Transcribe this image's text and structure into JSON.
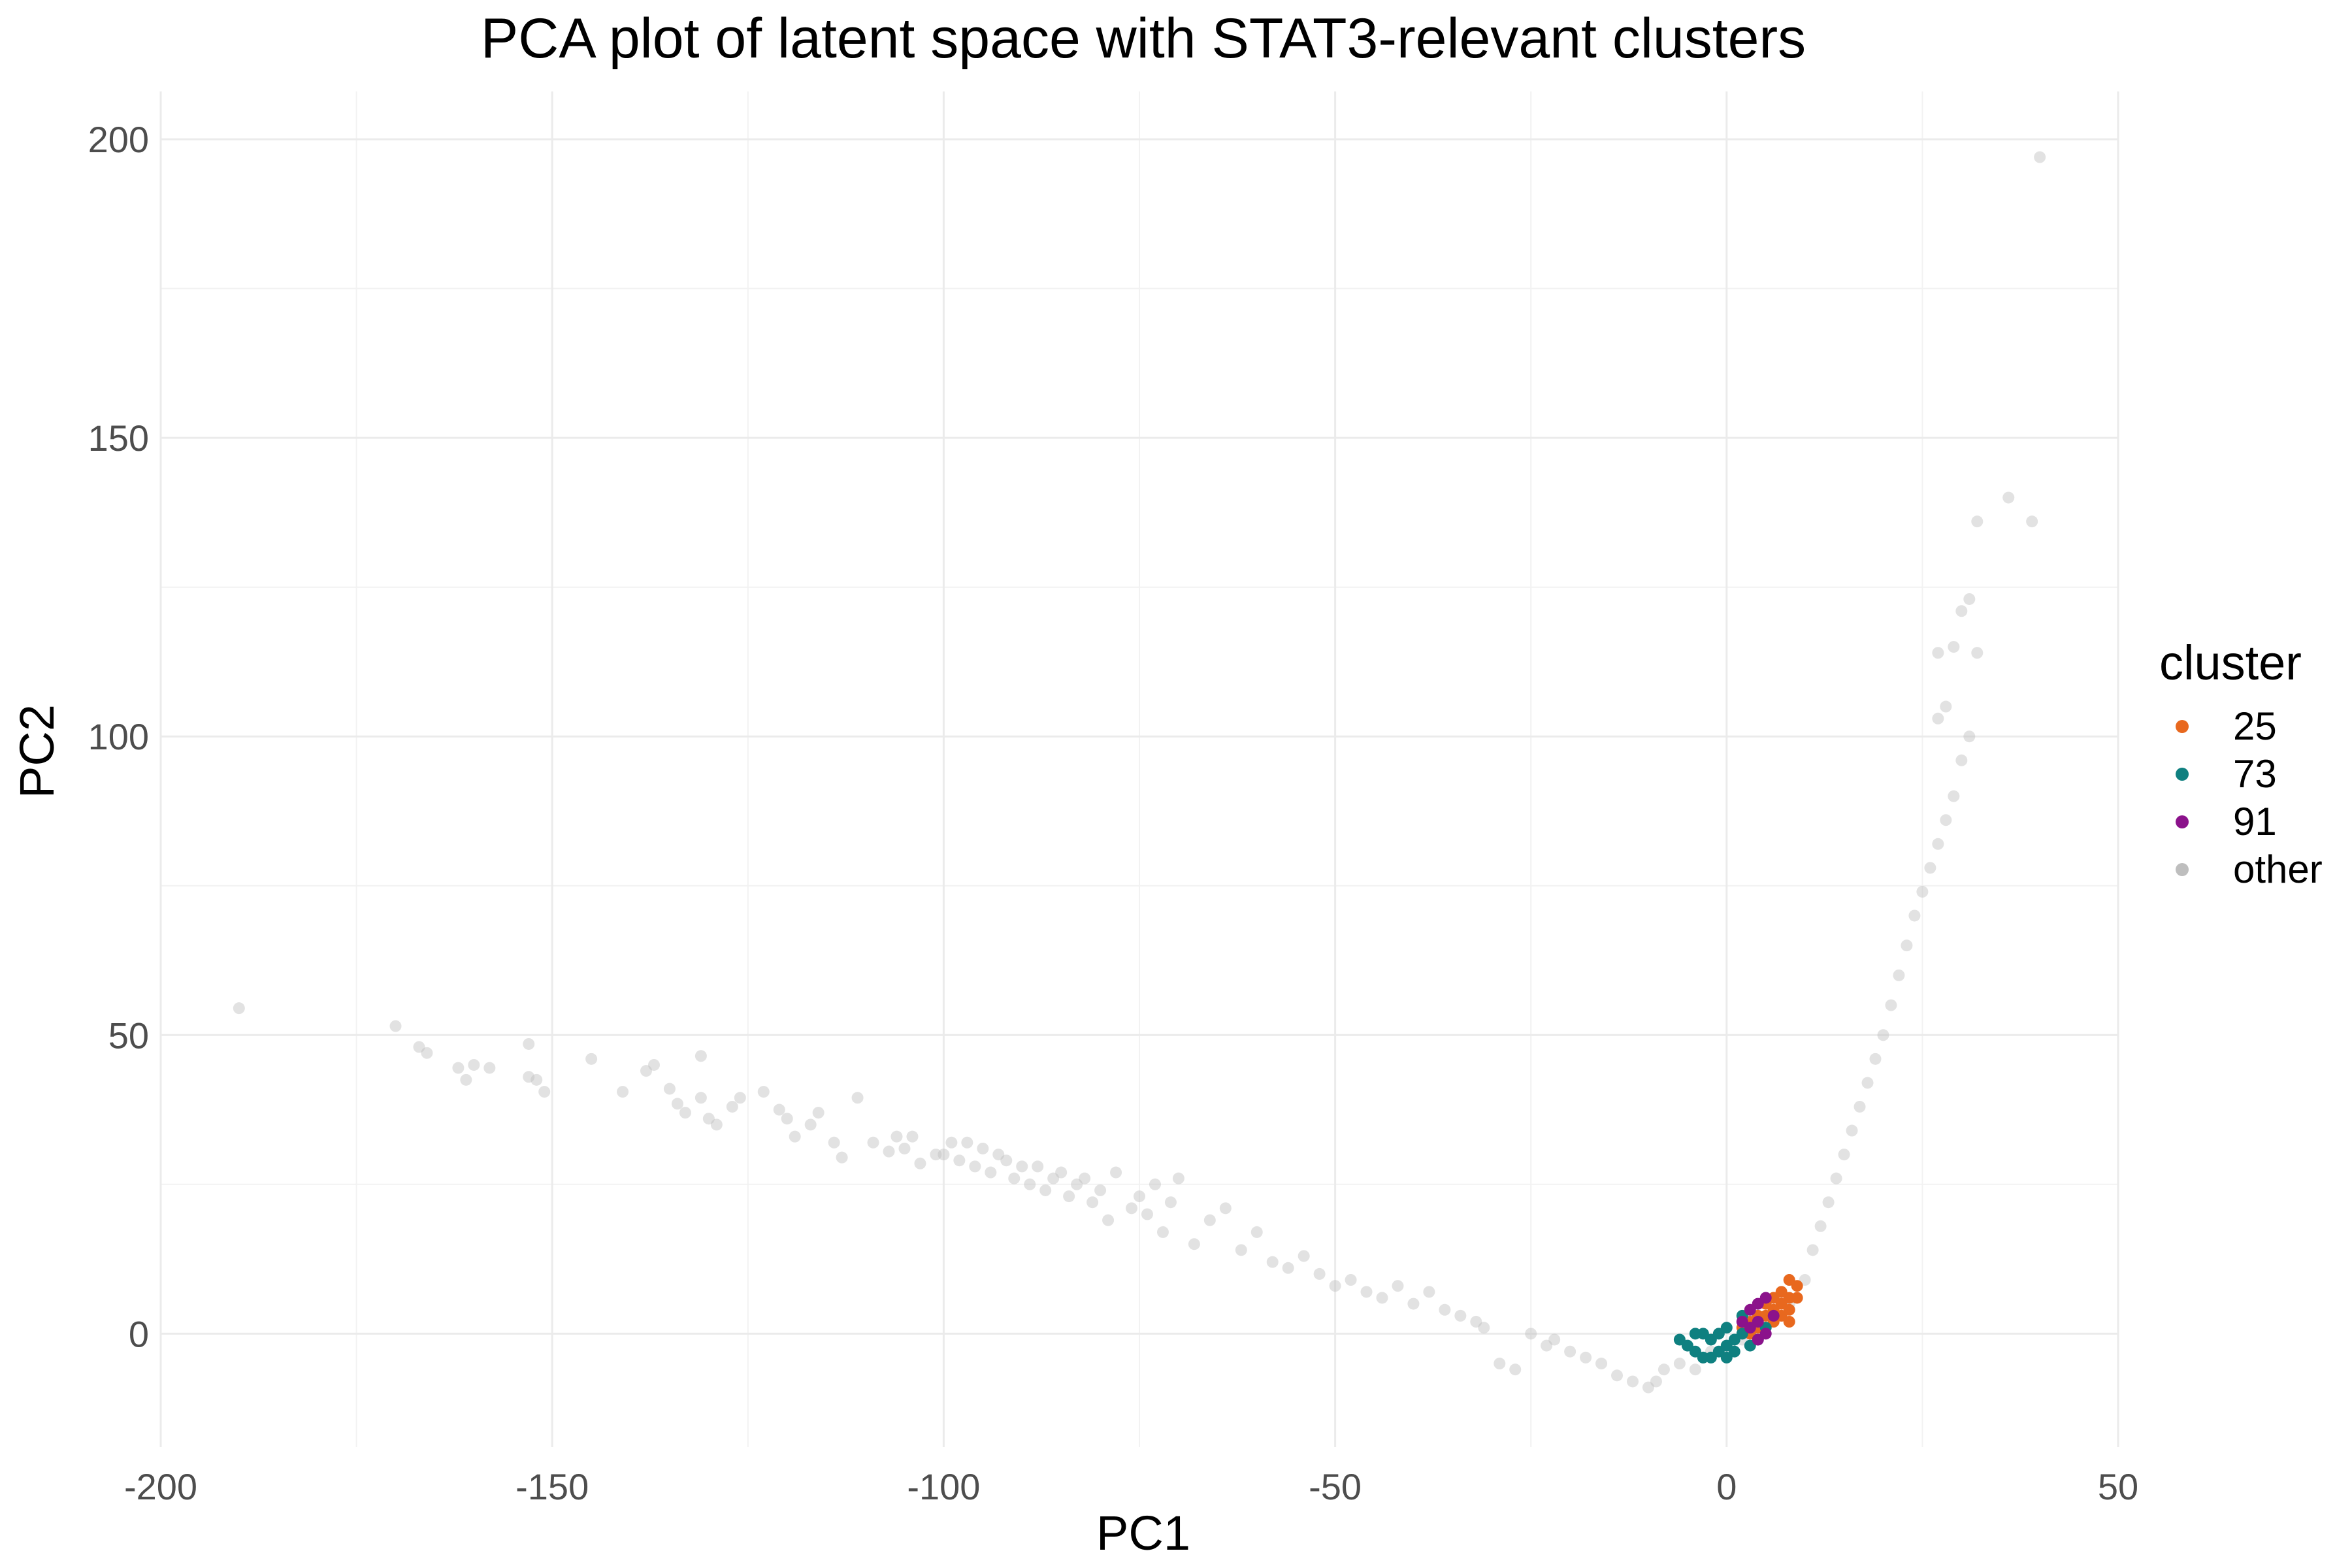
{
  "chart_data": {
    "type": "scatter",
    "title": "PCA plot of latent space with STAT3-relevant clusters",
    "xlabel": "PC1",
    "ylabel": "PC2",
    "xlim": [
      -200,
      50
    ],
    "ylim": [
      -19,
      208
    ],
    "xticks": [
      -200,
      -150,
      -100,
      -50,
      0,
      50
    ],
    "yticks": [
      0,
      50,
      100,
      150,
      200
    ],
    "x_tick_labels": [
      "-200",
      "-150",
      "-100",
      "-50",
      "0",
      "50"
    ],
    "y_tick_labels": [
      "0",
      "50",
      "100",
      "150",
      "200"
    ],
    "grid": true,
    "legend": {
      "title": "cluster",
      "position": "right",
      "entries": [
        {
          "label": "25",
          "color": "#e8681e"
        },
        {
          "label": "73",
          "color": "#0f8080"
        },
        {
          "label": "91",
          "color": "#8b128b"
        },
        {
          "label": "other",
          "color": "#bebebe"
        }
      ]
    },
    "series": [
      {
        "name": "other",
        "color": "#bebebe",
        "opacity": 0.45,
        "points": [
          [
            -190,
            54.5
          ],
          [
            -170,
            51.5
          ],
          [
            -167,
            48
          ],
          [
            -166,
            47
          ],
          [
            -162,
            44.5
          ],
          [
            -161,
            42.5
          ],
          [
            -160,
            45
          ],
          [
            -158,
            44.5
          ],
          [
            -153,
            43
          ],
          [
            -153,
            48.5
          ],
          [
            -152,
            42.5
          ],
          [
            -151,
            40.5
          ],
          [
            -145,
            46
          ],
          [
            -141,
            40.5
          ],
          [
            -138,
            44
          ],
          [
            -137,
            45
          ],
          [
            -135,
            41
          ],
          [
            -134,
            38.5
          ],
          [
            -133,
            37
          ],
          [
            -131,
            46.5
          ],
          [
            -131,
            39.5
          ],
          [
            -130,
            36
          ],
          [
            -129,
            35
          ],
          [
            -127,
            38
          ],
          [
            -126,
            39.5
          ],
          [
            -123,
            40.5
          ],
          [
            -121,
            37.5
          ],
          [
            -120,
            36
          ],
          [
            -119,
            33
          ],
          [
            -117,
            35
          ],
          [
            -116,
            37
          ],
          [
            -114,
            32
          ],
          [
            -113,
            29.5
          ],
          [
            -111,
            39.5
          ],
          [
            -109,
            32
          ],
          [
            -107,
            30.5
          ],
          [
            -106,
            33
          ],
          [
            -105,
            31
          ],
          [
            -104,
            33
          ],
          [
            -103,
            28.5
          ],
          [
            -101,
            30
          ],
          [
            -100,
            30
          ],
          [
            -99,
            32
          ],
          [
            -98,
            29
          ],
          [
            -97,
            32
          ],
          [
            -96,
            28
          ],
          [
            -95,
            31
          ],
          [
            -94,
            27
          ],
          [
            -93,
            30
          ],
          [
            -92,
            29
          ],
          [
            -91,
            26
          ],
          [
            -90,
            28
          ],
          [
            -89,
            25
          ],
          [
            -88,
            28
          ],
          [
            -87,
            24
          ],
          [
            -86,
            26
          ],
          [
            -85,
            27
          ],
          [
            -84,
            23
          ],
          [
            -83,
            25
          ],
          [
            -82,
            26
          ],
          [
            -81,
            22
          ],
          [
            -80,
            24
          ],
          [
            -79,
            19
          ],
          [
            -78,
            27
          ],
          [
            -76,
            21
          ],
          [
            -75,
            23
          ],
          [
            -74,
            20
          ],
          [
            -73,
            25
          ],
          [
            -72,
            17
          ],
          [
            -71,
            22
          ],
          [
            -70,
            26
          ],
          [
            -68,
            15
          ],
          [
            -66,
            19
          ],
          [
            -64,
            21
          ],
          [
            -62,
            14
          ],
          [
            -60,
            17
          ],
          [
            -58,
            12
          ],
          [
            -56,
            11
          ],
          [
            -54,
            13
          ],
          [
            -52,
            10
          ],
          [
            -50,
            8
          ],
          [
            -48,
            9
          ],
          [
            -46,
            7
          ],
          [
            -44,
            6
          ],
          [
            -42,
            8
          ],
          [
            -40,
            5
          ],
          [
            -38,
            7
          ],
          [
            -36,
            4
          ],
          [
            -34,
            3
          ],
          [
            -32,
            2
          ],
          [
            -31,
            1
          ],
          [
            -29,
            -5
          ],
          [
            -27,
            -6
          ],
          [
            -25,
            0
          ],
          [
            -23,
            -2
          ],
          [
            -22,
            -1
          ],
          [
            -20,
            -3
          ],
          [
            -18,
            -4
          ],
          [
            -16,
            -5
          ],
          [
            -14,
            -7
          ],
          [
            -12,
            -8
          ],
          [
            -10,
            -9
          ],
          [
            -9,
            -8
          ],
          [
            -8,
            -6
          ],
          [
            -6,
            -5
          ],
          [
            -4,
            -6
          ],
          [
            -3,
            -4
          ],
          [
            -2,
            -3
          ],
          [
            0,
            -2
          ],
          [
            2,
            -1
          ],
          [
            4,
            0
          ],
          [
            6,
            2
          ],
          [
            8,
            5
          ],
          [
            10,
            9
          ],
          [
            11,
            14
          ],
          [
            12,
            18
          ],
          [
            13,
            22
          ],
          [
            14,
            26
          ],
          [
            15,
            30
          ],
          [
            16,
            34
          ],
          [
            17,
            38
          ],
          [
            18,
            42
          ],
          [
            19,
            46
          ],
          [
            20,
            50
          ],
          [
            21,
            55
          ],
          [
            22,
            60
          ],
          [
            23,
            65
          ],
          [
            24,
            70
          ],
          [
            25,
            74
          ],
          [
            26,
            78
          ],
          [
            27,
            82
          ],
          [
            28,
            86
          ],
          [
            29,
            90
          ],
          [
            30,
            96
          ],
          [
            31,
            100
          ],
          [
            32,
            114
          ],
          [
            27,
            103
          ],
          [
            28,
            105
          ],
          [
            27,
            114
          ],
          [
            29,
            115
          ],
          [
            30,
            121
          ],
          [
            31,
            123
          ],
          [
            32,
            136
          ],
          [
            36,
            140
          ],
          [
            39,
            136
          ],
          [
            40,
            197
          ]
        ]
      },
      {
        "name": "25",
        "color": "#e8681e",
        "opacity": 1,
        "points": [
          [
            2,
            1
          ],
          [
            3,
            2
          ],
          [
            4,
            1
          ],
          [
            5,
            3
          ],
          [
            6,
            4
          ],
          [
            6,
            2
          ],
          [
            7,
            5
          ],
          [
            7,
            7
          ],
          [
            8,
            6
          ],
          [
            8,
            9
          ],
          [
            8,
            4
          ],
          [
            9,
            8
          ],
          [
            9,
            6
          ],
          [
            5,
            5
          ],
          [
            4,
            3
          ],
          [
            6,
            6
          ],
          [
            7,
            3
          ],
          [
            8,
            2
          ],
          [
            3,
            0
          ]
        ]
      },
      {
        "name": "73",
        "color": "#0f8080",
        "opacity": 1,
        "points": [
          [
            -6,
            -1
          ],
          [
            -5,
            -2
          ],
          [
            -4,
            -3
          ],
          [
            -3,
            -4
          ],
          [
            -3,
            0
          ],
          [
            -2,
            -1
          ],
          [
            -2,
            -4
          ],
          [
            -1,
            0
          ],
          [
            -1,
            -3
          ],
          [
            0,
            -2
          ],
          [
            0,
            -4
          ],
          [
            1,
            -1
          ],
          [
            1,
            -3
          ],
          [
            2,
            0
          ],
          [
            2,
            3
          ],
          [
            3,
            -2
          ],
          [
            4,
            -1
          ],
          [
            5,
            1
          ],
          [
            -4,
            0
          ],
          [
            0,
            1
          ]
        ]
      },
      {
        "name": "91",
        "color": "#8b128b",
        "opacity": 1,
        "points": [
          [
            2,
            2
          ],
          [
            3,
            4
          ],
          [
            4,
            5
          ],
          [
            4,
            2
          ],
          [
            5,
            6
          ],
          [
            5,
            0
          ],
          [
            4,
            -1
          ],
          [
            6,
            3
          ],
          [
            3,
            1
          ]
        ]
      }
    ]
  }
}
